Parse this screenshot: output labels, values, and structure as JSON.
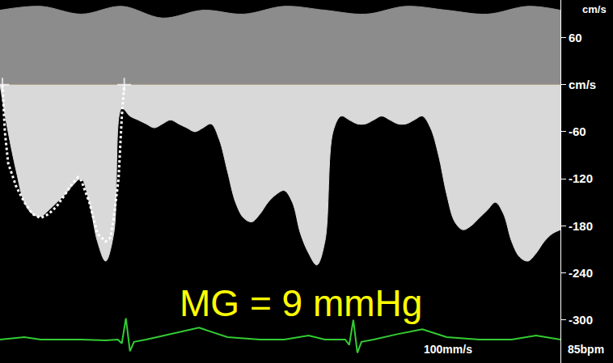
{
  "chart_data": {
    "type": "doppler",
    "ylabel": "cm/s",
    "annotations": [
      "MG = 9 mmHg",
      "100mm/s",
      "85bpm"
    ],
    "xlim": [
      0,
      69
    ],
    "ylim": [
      -355,
      108
    ],
    "yticks": [
      60,
      {
        "value": 0,
        "label": "cm/s"
      },
      -60,
      -120,
      -180,
      -240,
      -300
    ],
    "grid": false,
    "tick_labels": "y",
    "series": [
      {
        "type": "area",
        "color": "#8c8c8c",
        "x": [
          0,
          5,
          10,
          15,
          20,
          25,
          30,
          35,
          40,
          45,
          50,
          55,
          60,
          65,
          69
        ],
        "values": [
          95,
          100,
          90,
          100,
          85,
          95,
          90,
          100,
          95,
          90,
          100,
          95,
          90,
          100,
          95
        ]
      },
      {
        "type": "area",
        "color": "#d9d9d9",
        "x": [
          0,
          1,
          2,
          3,
          4,
          5,
          6,
          7,
          8,
          9,
          10,
          11,
          12,
          13,
          14,
          15,
          16,
          17,
          18,
          19,
          20,
          21,
          22,
          23,
          24,
          25,
          26,
          27,
          28,
          29,
          30,
          31,
          32,
          33,
          34,
          35,
          36,
          37,
          38,
          39,
          40,
          41,
          42,
          43,
          44,
          45,
          46,
          47,
          48,
          49,
          50,
          51,
          52,
          53,
          54,
          55,
          56,
          57,
          58,
          59,
          60,
          61,
          62,
          63,
          64,
          65,
          66,
          67,
          68,
          69
        ],
        "values": [
          0,
          -60,
          -110,
          -150,
          -165,
          -168,
          -160,
          -150,
          -140,
          -128,
          -120,
          -150,
          -200,
          -225,
          -190,
          -30,
          -40,
          -45,
          -50,
          -55,
          -50,
          -45,
          -50,
          -55,
          -60,
          -55,
          -50,
          -70,
          -110,
          -150,
          -170,
          -175,
          -165,
          -150,
          -140,
          -135,
          -150,
          -190,
          -215,
          -230,
          -200,
          -60,
          -40,
          -45,
          -50,
          -50,
          -45,
          -40,
          -45,
          -50,
          -50,
          -45,
          -40,
          -55,
          -90,
          -140,
          -175,
          -185,
          -180,
          -170,
          -160,
          -150,
          -165,
          -200,
          -220,
          -225,
          -215,
          -200,
          -190,
          -185
        ]
      },
      {
        "type": "line",
        "color": "#ffffff",
        "line_style": "dotted",
        "marker": "cross",
        "x": [
          0.3,
          0.6,
          1,
          2,
          3,
          4,
          5,
          6,
          7,
          8,
          9,
          9.6,
          10,
          11,
          11.6,
          12,
          13,
          13.6,
          14,
          14.6,
          15,
          15.3
        ],
        "values": [
          0,
          -60,
          -100,
          -130,
          -150,
          -165,
          -170,
          -165,
          -155,
          -140,
          -125,
          -118,
          -122,
          -150,
          -175,
          -190,
          -200,
          -195,
          -170,
          -120,
          -40,
          0
        ]
      },
      {
        "type": "line",
        "color": "#33cc33",
        "line_style": "solid",
        "x": [
          0,
          3,
          5,
          7,
          10,
          13,
          14.5,
          15,
          15.5,
          16,
          16.5,
          18,
          21,
          24.5,
          28,
          32,
          35,
          38,
          40,
          41.5,
          42.5,
          43,
          43.5,
          44,
          44.5,
          46,
          49,
          52,
          55,
          59,
          63,
          66,
          69
        ],
        "values": [
          -325,
          -322,
          -325,
          -325,
          -325,
          -326,
          -325,
          -330,
          -298,
          -340,
          -328,
          -325,
          -318,
          -310,
          -322,
          -325,
          -325,
          -320,
          -325,
          -325,
          -325,
          -332,
          -300,
          -342,
          -328,
          -325,
          -318,
          -312,
          -322,
          -325,
          -325,
          -320,
          -325
        ]
      }
    ]
  }
}
